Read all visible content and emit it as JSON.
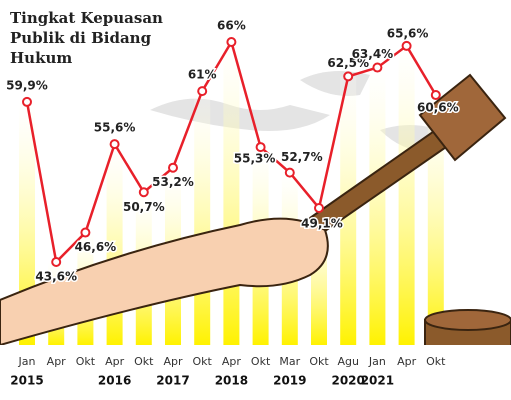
{
  "chart_data": {
    "type": "line",
    "title": "Tingkat Kepuasan Publik di Bidang Hukum",
    "categories": [
      "Jan",
      "Apr",
      "Okt",
      "Apr",
      "Okt",
      "Apr",
      "Okt",
      "Apr",
      "Okt",
      "Mar",
      "Okt",
      "Agu",
      "Jan",
      "Apr",
      "Okt"
    ],
    "category_years": [
      "2015",
      null,
      null,
      "2016",
      null,
      "2017",
      null,
      "2018",
      null,
      "2019",
      null,
      "2020",
      "2021",
      null,
      null
    ],
    "series": [
      {
        "name": "Kepuasan",
        "color": "#e8202a",
        "values": [
          59.9,
          43.6,
          46.6,
          55.6,
          50.7,
          53.2,
          61,
          66,
          55.3,
          52.7,
          49.1,
          62.5,
          63.4,
          65.6,
          60.6
        ],
        "value_labels": [
          "59,9%",
          "43,6%",
          "46,6%",
          "55,6%",
          "50,7%",
          "53,2%",
          "61%",
          "66%",
          "55,3%",
          "52,7%",
          "49,1%",
          "62,5%",
          "63,4%",
          "65,6%",
          "60,6%"
        ]
      }
    ],
    "bar_color": "#fff200"
  }
}
